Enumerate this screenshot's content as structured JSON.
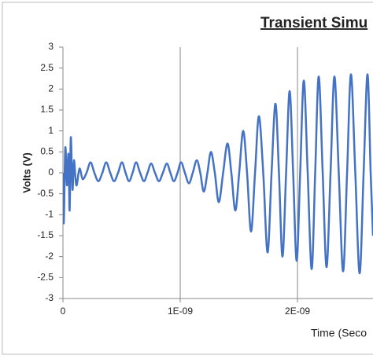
{
  "chart_data": {
    "type": "line",
    "title": "Transient Simu",
    "x_label": "Time (Seco",
    "y_label": "Volts (V)",
    "xlim": [
      0,
      2.644e-09
    ],
    "xticks": [
      0,
      {
        "value": 1e-09,
        "label": "1E-09"
      },
      {
        "value": 2e-09,
        "label": "2E-09"
      }
    ],
    "ylim": [
      -3,
      3
    ],
    "yticks": [
      -3,
      -2.5,
      -2,
      -1.5,
      -1,
      -0.5,
      0,
      0.5,
      1,
      1.5,
      2,
      2.5,
      3
    ],
    "grid": true,
    "series": [
      {
        "name": null,
        "color": "#4472c4",
        "x": [
          0,
          7e-12,
          2e-11,
          3.4e-11,
          4.7e-11,
          5.7e-11,
          6.7e-11,
          8.1e-11,
          9.4e-11,
          1.14e-10,
          1.41e-10,
          1.68e-10,
          2.01e-10,
          2.35e-10,
          2.68e-10,
          3.02e-10,
          3.36e-10,
          3.69e-10,
          4.03e-10,
          4.36e-10,
          4.7e-10,
          5.03e-10,
          5.34e-10,
          5.64e-10,
          5.94e-10,
          6.24e-10,
          6.58e-10,
          6.91e-10,
          7.21e-10,
          7.52e-10,
          7.85e-10,
          8.19e-10,
          8.52e-10,
          8.86e-10,
          9.16e-10,
          9.46e-10,
          9.77e-10,
          1.007e-09,
          1.04e-09,
          1.074e-09,
          1.107e-09,
          1.141e-09,
          1.171e-09,
          1.201e-09,
          1.232e-09,
          1.262e-09,
          1.295e-09,
          1.329e-09,
          1.366e-09,
          1.403e-09,
          1.436e-09,
          1.47e-09,
          1.503e-09,
          1.537e-09,
          1.57e-09,
          1.604e-09,
          1.638e-09,
          1.671e-09,
          1.708e-09,
          1.745e-09,
          1.779e-09,
          1.812e-09,
          1.842e-09,
          1.872e-09,
          1.903e-09,
          1.933e-09,
          1.963e-09,
          1.993e-09,
          2.023e-09,
          2.054e-09,
          2.087e-09,
          2.121e-09,
          2.151e-09,
          2.181e-09,
          2.215e-09,
          2.248e-09,
          2.282e-09,
          2.315e-09,
          2.352e-09,
          2.389e-09,
          2.423e-09,
          2.456e-09,
          2.493e-09,
          2.53e-09,
          2.564e-09,
          2.597e-09,
          2.624e-09,
          2.644e-09
        ],
        "values": [
          0,
          -1.2,
          0.6,
          -0.3,
          0.45,
          -0.9,
          0.85,
          -0.4,
          0.3,
          -0.3,
          0.1,
          -0.15,
          0,
          0.25,
          0,
          -0.2,
          0,
          0.25,
          0,
          -0.2,
          0,
          0.25,
          0,
          -0.2,
          0,
          0.25,
          0,
          -0.2,
          0,
          0.22,
          0,
          -0.2,
          0,
          0.22,
          0,
          -0.2,
          0,
          0.25,
          0,
          -0.25,
          0,
          0.3,
          0,
          -0.45,
          0,
          0.5,
          0,
          -0.7,
          0,
          0.7,
          0,
          -0.9,
          0,
          1.0,
          0,
          -1.4,
          0,
          1.35,
          0,
          -1.9,
          0,
          1.65,
          0,
          -2.0,
          0,
          1.95,
          0,
          -2.1,
          0,
          2.2,
          0,
          -2.3,
          0,
          2.3,
          0,
          -2.25,
          0,
          2.3,
          0,
          -2.35,
          0,
          2.35,
          0,
          -2.4,
          0,
          2.35,
          0,
          -1.5
        ]
      }
    ]
  }
}
